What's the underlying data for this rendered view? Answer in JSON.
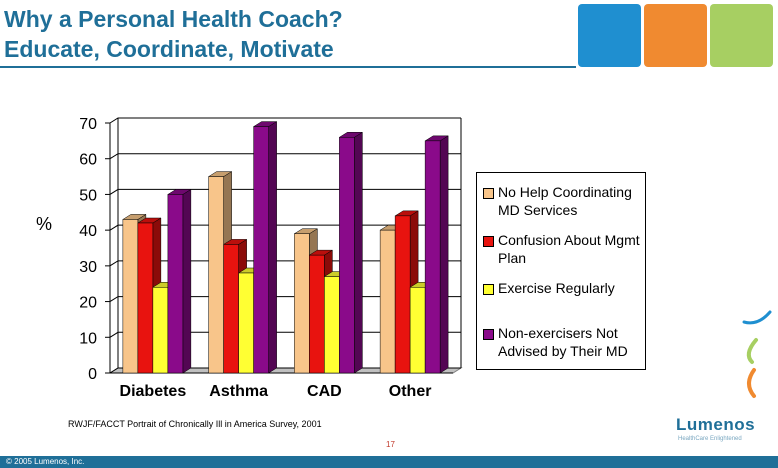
{
  "title_line1": "Why a Personal Health Coach?",
  "title_line2": "Educate, Coordinate, Motivate",
  "colors": {
    "title": "#1f6f98",
    "tile_blue": "#1f8fd0",
    "tile_orange": "#f08a30",
    "tile_green": "#a7cf62"
  },
  "ylabel": "%",
  "source_note": "RWJF/FACCT Portrait of Chronically Ill in America Survey, 2001",
  "page_number": "17",
  "copyright": "© 2005 Lumenos, Inc.",
  "logo": {
    "name": "Lumenos",
    "tagline": "HealthCare Enlightened"
  },
  "chart_data": {
    "type": "bar",
    "categories": [
      "Diabetes",
      "Asthma",
      "CAD",
      "Other"
    ],
    "ylabel": "%",
    "ylim": [
      0,
      70
    ],
    "yticks": [
      0,
      10,
      20,
      30,
      40,
      50,
      60,
      70
    ],
    "grid": true,
    "legend_position": "right",
    "series": [
      {
        "name": "No Help Coordinating MD Services",
        "color": "#f8c58a",
        "values": [
          43,
          55,
          39,
          40
        ]
      },
      {
        "name": "Confusion About Mgmt Plan",
        "color": "#e8130f",
        "values": [
          42,
          36,
          33,
          44
        ]
      },
      {
        "name": "Exercise Regularly",
        "color": "#ffff33",
        "values": [
          24,
          28,
          27,
          24
        ]
      },
      {
        "name": "Non-exercisers Not Advised by Their MD",
        "color": "#8a0a8a",
        "values": [
          50,
          69,
          66,
          65
        ]
      }
    ]
  }
}
